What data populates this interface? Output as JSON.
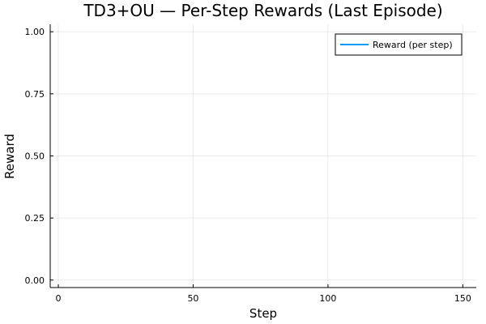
{
  "chart_data": {
    "type": "line",
    "title": "TD3+OU — Per-Step Rewards (Last Episode)",
    "xlabel": "Step",
    "ylabel": "Reward",
    "xlim": [
      -3,
      155
    ],
    "ylim": [
      -0.03,
      1.03
    ],
    "xticks": [
      0,
      50,
      100,
      150
    ],
    "yticks": [
      0.0,
      0.25,
      0.5,
      0.75,
      1.0
    ],
    "xtick_labels": [
      "0",
      "50",
      "100",
      "150"
    ],
    "ytick_labels": [
      "0.00",
      "0.25",
      "0.50",
      "0.75",
      "1.00"
    ],
    "grid": true,
    "legend_position": "top-right",
    "series": [
      {
        "name": "Reward (per step)",
        "color": "#009af9",
        "x": [],
        "y": []
      }
    ]
  }
}
